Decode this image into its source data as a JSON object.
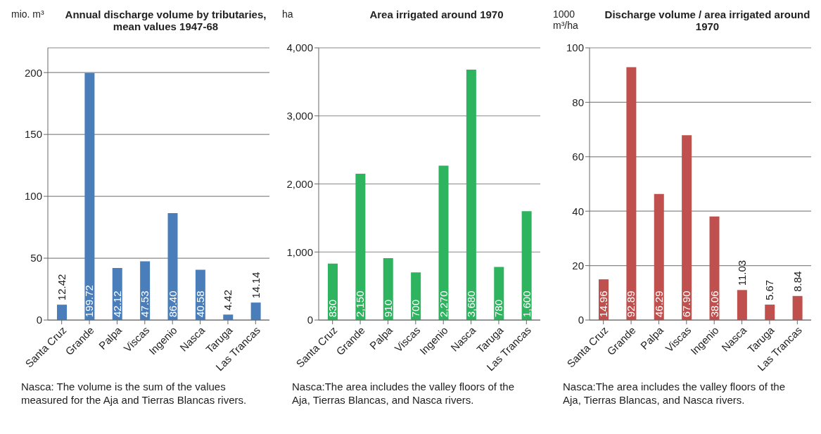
{
  "chart_data": [
    {
      "type": "bar",
      "title": "Annual discharge volume by tributaries, mean values 1947-68",
      "ylabel": "mio. m³",
      "categories": [
        "Santa Cruz",
        "Grande",
        "Palpa",
        "Viscas",
        "Ingenio",
        "Nasca",
        "Taruga",
        "Las Trancas"
      ],
      "values": [
        12.42,
        199.72,
        42.12,
        47.53,
        86.4,
        40.58,
        4.42,
        14.14
      ],
      "value_labels": [
        "12.42",
        "199.72",
        "42.12",
        "47.53",
        "86.40",
        "40.58",
        "4.42",
        "14.14"
      ],
      "color": "#4a7ebb",
      "ylim": [
        0,
        220
      ],
      "yticks": [
        0,
        50,
        100,
        150,
        200
      ],
      "grid": "y",
      "legend": false,
      "annotations": [
        "Nasca: The volume is the sum of the values measured for the Aja and Tierras Blancas rivers."
      ]
    },
    {
      "type": "bar",
      "title": "Area irrigated around 1970",
      "ylabel": "ha",
      "categories": [
        "Santa Cruz",
        "Grande",
        "Palpa",
        "Viscas",
        "Ingenio",
        "Nasca",
        "Taruga",
        "Las Trancas"
      ],
      "values": [
        830,
        2150,
        910,
        700,
        2270,
        3680,
        780,
        1600
      ],
      "value_labels": [
        "830",
        "2,150",
        "910",
        "700",
        "2,270",
        "3,680",
        "780",
        "1,600"
      ],
      "color": "#2eb35f",
      "ylim": [
        0,
        4000
      ],
      "yticks": [
        0,
        {
          "value": 1000,
          "label": "1,000"
        },
        {
          "value": 2000,
          "label": "2,000"
        },
        {
          "value": 3000,
          "label": "3,000"
        },
        {
          "value": 4000,
          "label": "4,000"
        }
      ],
      "grid": "y",
      "legend": false,
      "annotations": [
        "Nasca:The area includes the valley floors of the Aja, Tierras Blancas, and Nasca rivers."
      ]
    },
    {
      "type": "bar",
      "title": "Discharge volume / area irrigated around 1970",
      "ylabel": "1000 m³/ha",
      "categories": [
        "Santa Cruz",
        "Grande",
        "Palpa",
        "Viscas",
        "Ingenio",
        "Nasca",
        "Taruga",
        "Las Trancas"
      ],
      "values": [
        14.96,
        92.89,
        46.29,
        67.9,
        38.06,
        11.03,
        5.67,
        8.84
      ],
      "value_labels": [
        "14.96",
        "92.89",
        "46.29",
        "67.90",
        "38.06",
        "11.03",
        "5.67",
        "8.84"
      ],
      "color": "#c0504d",
      "ylim": [
        0,
        100
      ],
      "yticks": [
        0,
        20,
        40,
        60,
        80,
        100
      ],
      "grid": "y",
      "legend": false,
      "annotations": [
        "Nasca:The area includes the valley floors of the Aja, Tierras Blancas, and Nasca rivers."
      ]
    }
  ]
}
